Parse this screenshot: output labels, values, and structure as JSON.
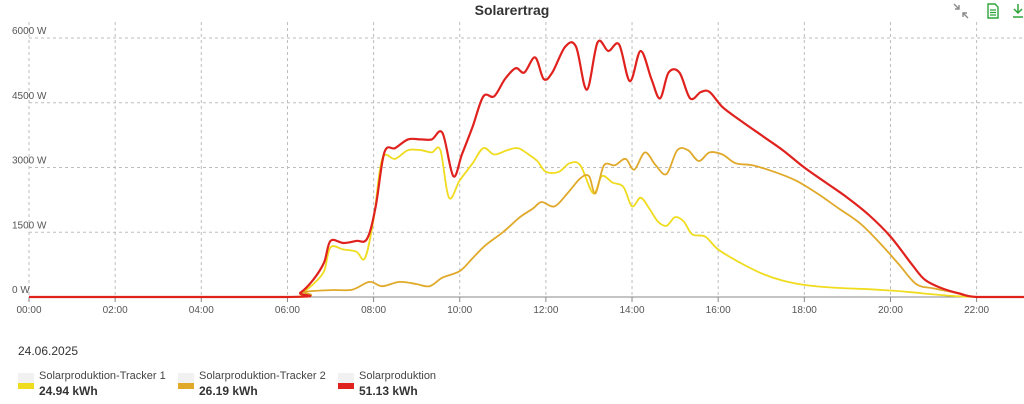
{
  "chart_data": {
    "type": "line",
    "title": "Solarertrag",
    "date": "24.06.2025",
    "ylim": [
      0,
      6000
    ],
    "y_ticks": [
      "0 W",
      "1500 W",
      "3000 W",
      "4500 W",
      "6000 W"
    ],
    "y_tick_values": [
      0,
      1500,
      3000,
      4500,
      6000
    ],
    "xlim": [
      0,
      23.1
    ],
    "x_ticks": [
      "00:00",
      "02:00",
      "04:00",
      "06:00",
      "08:00",
      "10:00",
      "12:00",
      "14:00",
      "16:00",
      "18:00",
      "20:00",
      "22:00"
    ],
    "x_tick_values": [
      0,
      2,
      4,
      6,
      8,
      10,
      12,
      14,
      16,
      18,
      20,
      22
    ],
    "grid": true,
    "legend_position": "bottom-left",
    "series": [
      {
        "name": "Solarproduktion-Tracker 1",
        "total": "24.94 kWh",
        "color": "#f0dc1e",
        "points": [
          [
            0,
            0
          ],
          [
            6,
            0
          ],
          [
            6.3,
            80
          ],
          [
            6.6,
            300
          ],
          [
            6.85,
            600
          ],
          [
            7.0,
            1150
          ],
          [
            7.3,
            1100
          ],
          [
            7.6,
            1050
          ],
          [
            7.8,
            900
          ],
          [
            8.0,
            1800
          ],
          [
            8.2,
            3200
          ],
          [
            8.5,
            3200
          ],
          [
            8.8,
            3400
          ],
          [
            9.1,
            3400
          ],
          [
            9.35,
            3350
          ],
          [
            9.55,
            3400
          ],
          [
            9.75,
            2300
          ],
          [
            10.0,
            2700
          ],
          [
            10.3,
            3100
          ],
          [
            10.55,
            3450
          ],
          [
            10.8,
            3300
          ],
          [
            11.1,
            3400
          ],
          [
            11.35,
            3450
          ],
          [
            11.6,
            3300
          ],
          [
            11.8,
            3150
          ],
          [
            12.0,
            2900
          ],
          [
            12.3,
            2900
          ],
          [
            12.55,
            3100
          ],
          [
            12.8,
            3050
          ],
          [
            13.1,
            2400
          ],
          [
            13.3,
            2800
          ],
          [
            13.55,
            2650
          ],
          [
            13.8,
            2550
          ],
          [
            14.0,
            2100
          ],
          [
            14.2,
            2300
          ],
          [
            14.4,
            2050
          ],
          [
            14.6,
            1750
          ],
          [
            14.8,
            1650
          ],
          [
            15.0,
            1850
          ],
          [
            15.2,
            1750
          ],
          [
            15.4,
            1450
          ],
          [
            15.7,
            1400
          ],
          [
            16.0,
            1100
          ],
          [
            16.5,
            800
          ],
          [
            17.0,
            550
          ],
          [
            17.5,
            380
          ],
          [
            18.0,
            280
          ],
          [
            18.5,
            230
          ],
          [
            19.0,
            200
          ],
          [
            19.5,
            180
          ],
          [
            20.0,
            150
          ],
          [
            20.5,
            110
          ],
          [
            21.0,
            60
          ],
          [
            21.5,
            20
          ],
          [
            22.0,
            0
          ],
          [
            23.1,
            0
          ]
        ]
      },
      {
        "name": "Solarproduktion-Tracker 2",
        "total": "26.19 kWh",
        "color": "#e0a92a",
        "points": [
          [
            0,
            0
          ],
          [
            6,
            0
          ],
          [
            6.4,
            120
          ],
          [
            7.0,
            160
          ],
          [
            7.5,
            170
          ],
          [
            7.9,
            350
          ],
          [
            8.2,
            250
          ],
          [
            8.6,
            350
          ],
          [
            9.0,
            300
          ],
          [
            9.3,
            250
          ],
          [
            9.6,
            450
          ],
          [
            10.0,
            600
          ],
          [
            10.3,
            900
          ],
          [
            10.6,
            1200
          ],
          [
            11.0,
            1500
          ],
          [
            11.4,
            1850
          ],
          [
            11.7,
            2050
          ],
          [
            11.9,
            2200
          ],
          [
            12.2,
            2100
          ],
          [
            12.5,
            2400
          ],
          [
            12.8,
            2750
          ],
          [
            13.0,
            2800
          ],
          [
            13.15,
            2400
          ],
          [
            13.35,
            3050
          ],
          [
            13.6,
            3050
          ],
          [
            13.85,
            3200
          ],
          [
            14.05,
            2950
          ],
          [
            14.3,
            3350
          ],
          [
            14.55,
            3050
          ],
          [
            14.8,
            2850
          ],
          [
            15.05,
            3400
          ],
          [
            15.3,
            3400
          ],
          [
            15.55,
            3150
          ],
          [
            15.8,
            3350
          ],
          [
            16.1,
            3300
          ],
          [
            16.4,
            3100
          ],
          [
            16.8,
            3050
          ],
          [
            17.3,
            2900
          ],
          [
            17.8,
            2700
          ],
          [
            18.3,
            2400
          ],
          [
            18.8,
            2050
          ],
          [
            19.3,
            1700
          ],
          [
            19.8,
            1200
          ],
          [
            20.2,
            750
          ],
          [
            20.6,
            300
          ],
          [
            21.0,
            200
          ],
          [
            21.5,
            100
          ],
          [
            22.0,
            0
          ],
          [
            23.1,
            0
          ]
        ]
      },
      {
        "name": "Solarproduktion",
        "total": "51.13 kWh",
        "color": "#e0221e",
        "points": [
          [
            0,
            0
          ],
          [
            6,
            0
          ],
          [
            6.3,
            100
          ],
          [
            6.6,
            400
          ],
          [
            6.85,
            800
          ],
          [
            7.0,
            1300
          ],
          [
            7.3,
            1250
          ],
          [
            7.6,
            1300
          ],
          [
            7.85,
            1350
          ],
          [
            8.05,
            2100
          ],
          [
            8.25,
            3350
          ],
          [
            8.5,
            3450
          ],
          [
            8.8,
            3650
          ],
          [
            9.1,
            3650
          ],
          [
            9.35,
            3650
          ],
          [
            9.6,
            3800
          ],
          [
            9.85,
            2800
          ],
          [
            10.05,
            3300
          ],
          [
            10.3,
            3950
          ],
          [
            10.55,
            4650
          ],
          [
            10.8,
            4650
          ],
          [
            11.05,
            5050
          ],
          [
            11.3,
            5300
          ],
          [
            11.5,
            5200
          ],
          [
            11.75,
            5550
          ],
          [
            11.95,
            5050
          ],
          [
            12.15,
            5200
          ],
          [
            12.45,
            5800
          ],
          [
            12.7,
            5800
          ],
          [
            12.95,
            4800
          ],
          [
            13.2,
            5900
          ],
          [
            13.45,
            5700
          ],
          [
            13.7,
            5850
          ],
          [
            13.95,
            5000
          ],
          [
            14.2,
            5700
          ],
          [
            14.45,
            5050
          ],
          [
            14.65,
            4600
          ],
          [
            14.85,
            5200
          ],
          [
            15.1,
            5200
          ],
          [
            15.35,
            4600
          ],
          [
            15.6,
            4750
          ],
          [
            15.8,
            4750
          ],
          [
            16.1,
            4400
          ],
          [
            16.5,
            4100
          ],
          [
            17.0,
            3750
          ],
          [
            17.5,
            3400
          ],
          [
            18.0,
            3000
          ],
          [
            18.5,
            2650
          ],
          [
            19.0,
            2300
          ],
          [
            19.5,
            1900
          ],
          [
            20.0,
            1400
          ],
          [
            20.5,
            750
          ],
          [
            20.8,
            400
          ],
          [
            21.2,
            200
          ],
          [
            21.6,
            80
          ],
          [
            22.0,
            0
          ],
          [
            23.1,
            0
          ]
        ]
      }
    ]
  },
  "toolbar": {
    "icons": [
      "collapse-arrows-icon",
      "document-icon",
      "download-icon"
    ],
    "accent": "#2ea53a"
  }
}
